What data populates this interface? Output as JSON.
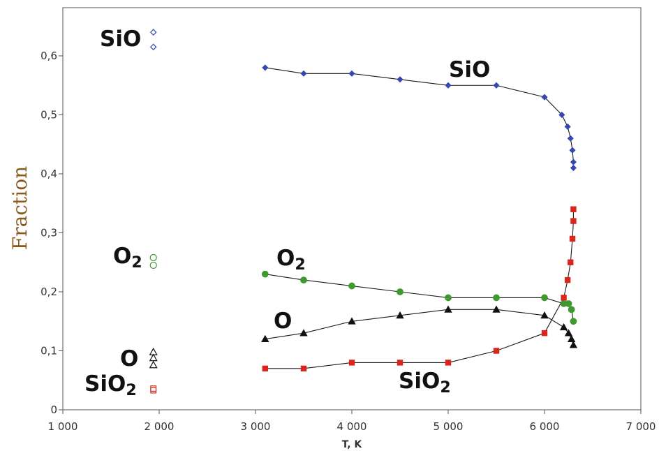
{
  "chart_data": {
    "type": "line",
    "xlabel": "T, K",
    "ylabel": "Fraction",
    "xlim": [
      1000,
      7000
    ],
    "ylim": [
      0,
      0.65
    ],
    "x_ticks": [
      "1 000",
      "2 000",
      "3 000",
      "4 000",
      "5 000",
      "6 000",
      "7 000"
    ],
    "y_ticks": [
      "0",
      "0,1",
      "0,2",
      "0,3",
      "0,4",
      "0,5",
      "0,6"
    ],
    "grid": false,
    "series": [
      {
        "name": "SiO",
        "color": "#3548b0",
        "marker": "diamond",
        "x": [
          3100,
          3500,
          4000,
          4500,
          5000,
          5500,
          6000,
          6180,
          6240,
          6270,
          6290,
          6300,
          6300
        ],
        "y": [
          0.58,
          0.57,
          0.57,
          0.56,
          0.55,
          0.55,
          0.53,
          0.5,
          0.48,
          0.46,
          0.44,
          0.42,
          0.41
        ]
      },
      {
        "name": "O2",
        "color": "#3e9a2e",
        "marker": "circle",
        "x": [
          3100,
          3500,
          4000,
          4500,
          5000,
          5500,
          6000,
          6200,
          6250,
          6280,
          6300
        ],
        "y": [
          0.23,
          0.22,
          0.21,
          0.2,
          0.19,
          0.19,
          0.19,
          0.18,
          0.18,
          0.17,
          0.15
        ]
      },
      {
        "name": "O",
        "color": "#111111",
        "marker": "triangle",
        "x": [
          3100,
          3500,
          4000,
          4500,
          5000,
          5500,
          6000,
          6200,
          6250,
          6280,
          6300
        ],
        "y": [
          0.12,
          0.13,
          0.15,
          0.16,
          0.17,
          0.17,
          0.16,
          0.14,
          0.13,
          0.12,
          0.11
        ]
      },
      {
        "name": "SiO2",
        "color": "#d8261c",
        "marker": "square",
        "x": [
          3100,
          3500,
          4000,
          4500,
          5000,
          5500,
          6000,
          6200,
          6240,
          6270,
          6290,
          6300,
          6300
        ],
        "y": [
          0.07,
          0.07,
          0.08,
          0.08,
          0.08,
          0.1,
          0.13,
          0.19,
          0.22,
          0.25,
          0.29,
          0.32,
          0.34
        ]
      }
    ],
    "reference_points": [
      {
        "name": "SiO",
        "color": "#3548b0",
        "marker": "diamond-open",
        "x": 1940,
        "y": [
          0.64,
          0.615
        ]
      },
      {
        "name": "O2",
        "color": "#3e9a2e",
        "marker": "circle-open",
        "x": 1940,
        "y": [
          0.258,
          0.245
        ]
      },
      {
        "name": "O",
        "color": "#111111",
        "marker": "triangle-open",
        "x": 1940,
        "y": [
          0.098,
          0.088,
          0.076
        ]
      },
      {
        "name": "SiO2",
        "color": "#d8261c",
        "marker": "square-open",
        "x": 1940,
        "y": [
          0.036,
          0.033
        ]
      }
    ],
    "annotations": {
      "left": [
        {
          "base": "SiO",
          "sub": ""
        },
        {
          "base": "O",
          "sub": "2"
        },
        {
          "base": "O",
          "sub": ""
        },
        {
          "base": "SiO",
          "sub": "2"
        }
      ],
      "curves": [
        {
          "base": "SiO",
          "sub": ""
        },
        {
          "base": "O",
          "sub": "2"
        },
        {
          "base": "O",
          "sub": ""
        },
        {
          "base": "SiO",
          "sub": "2"
        }
      ]
    }
  }
}
